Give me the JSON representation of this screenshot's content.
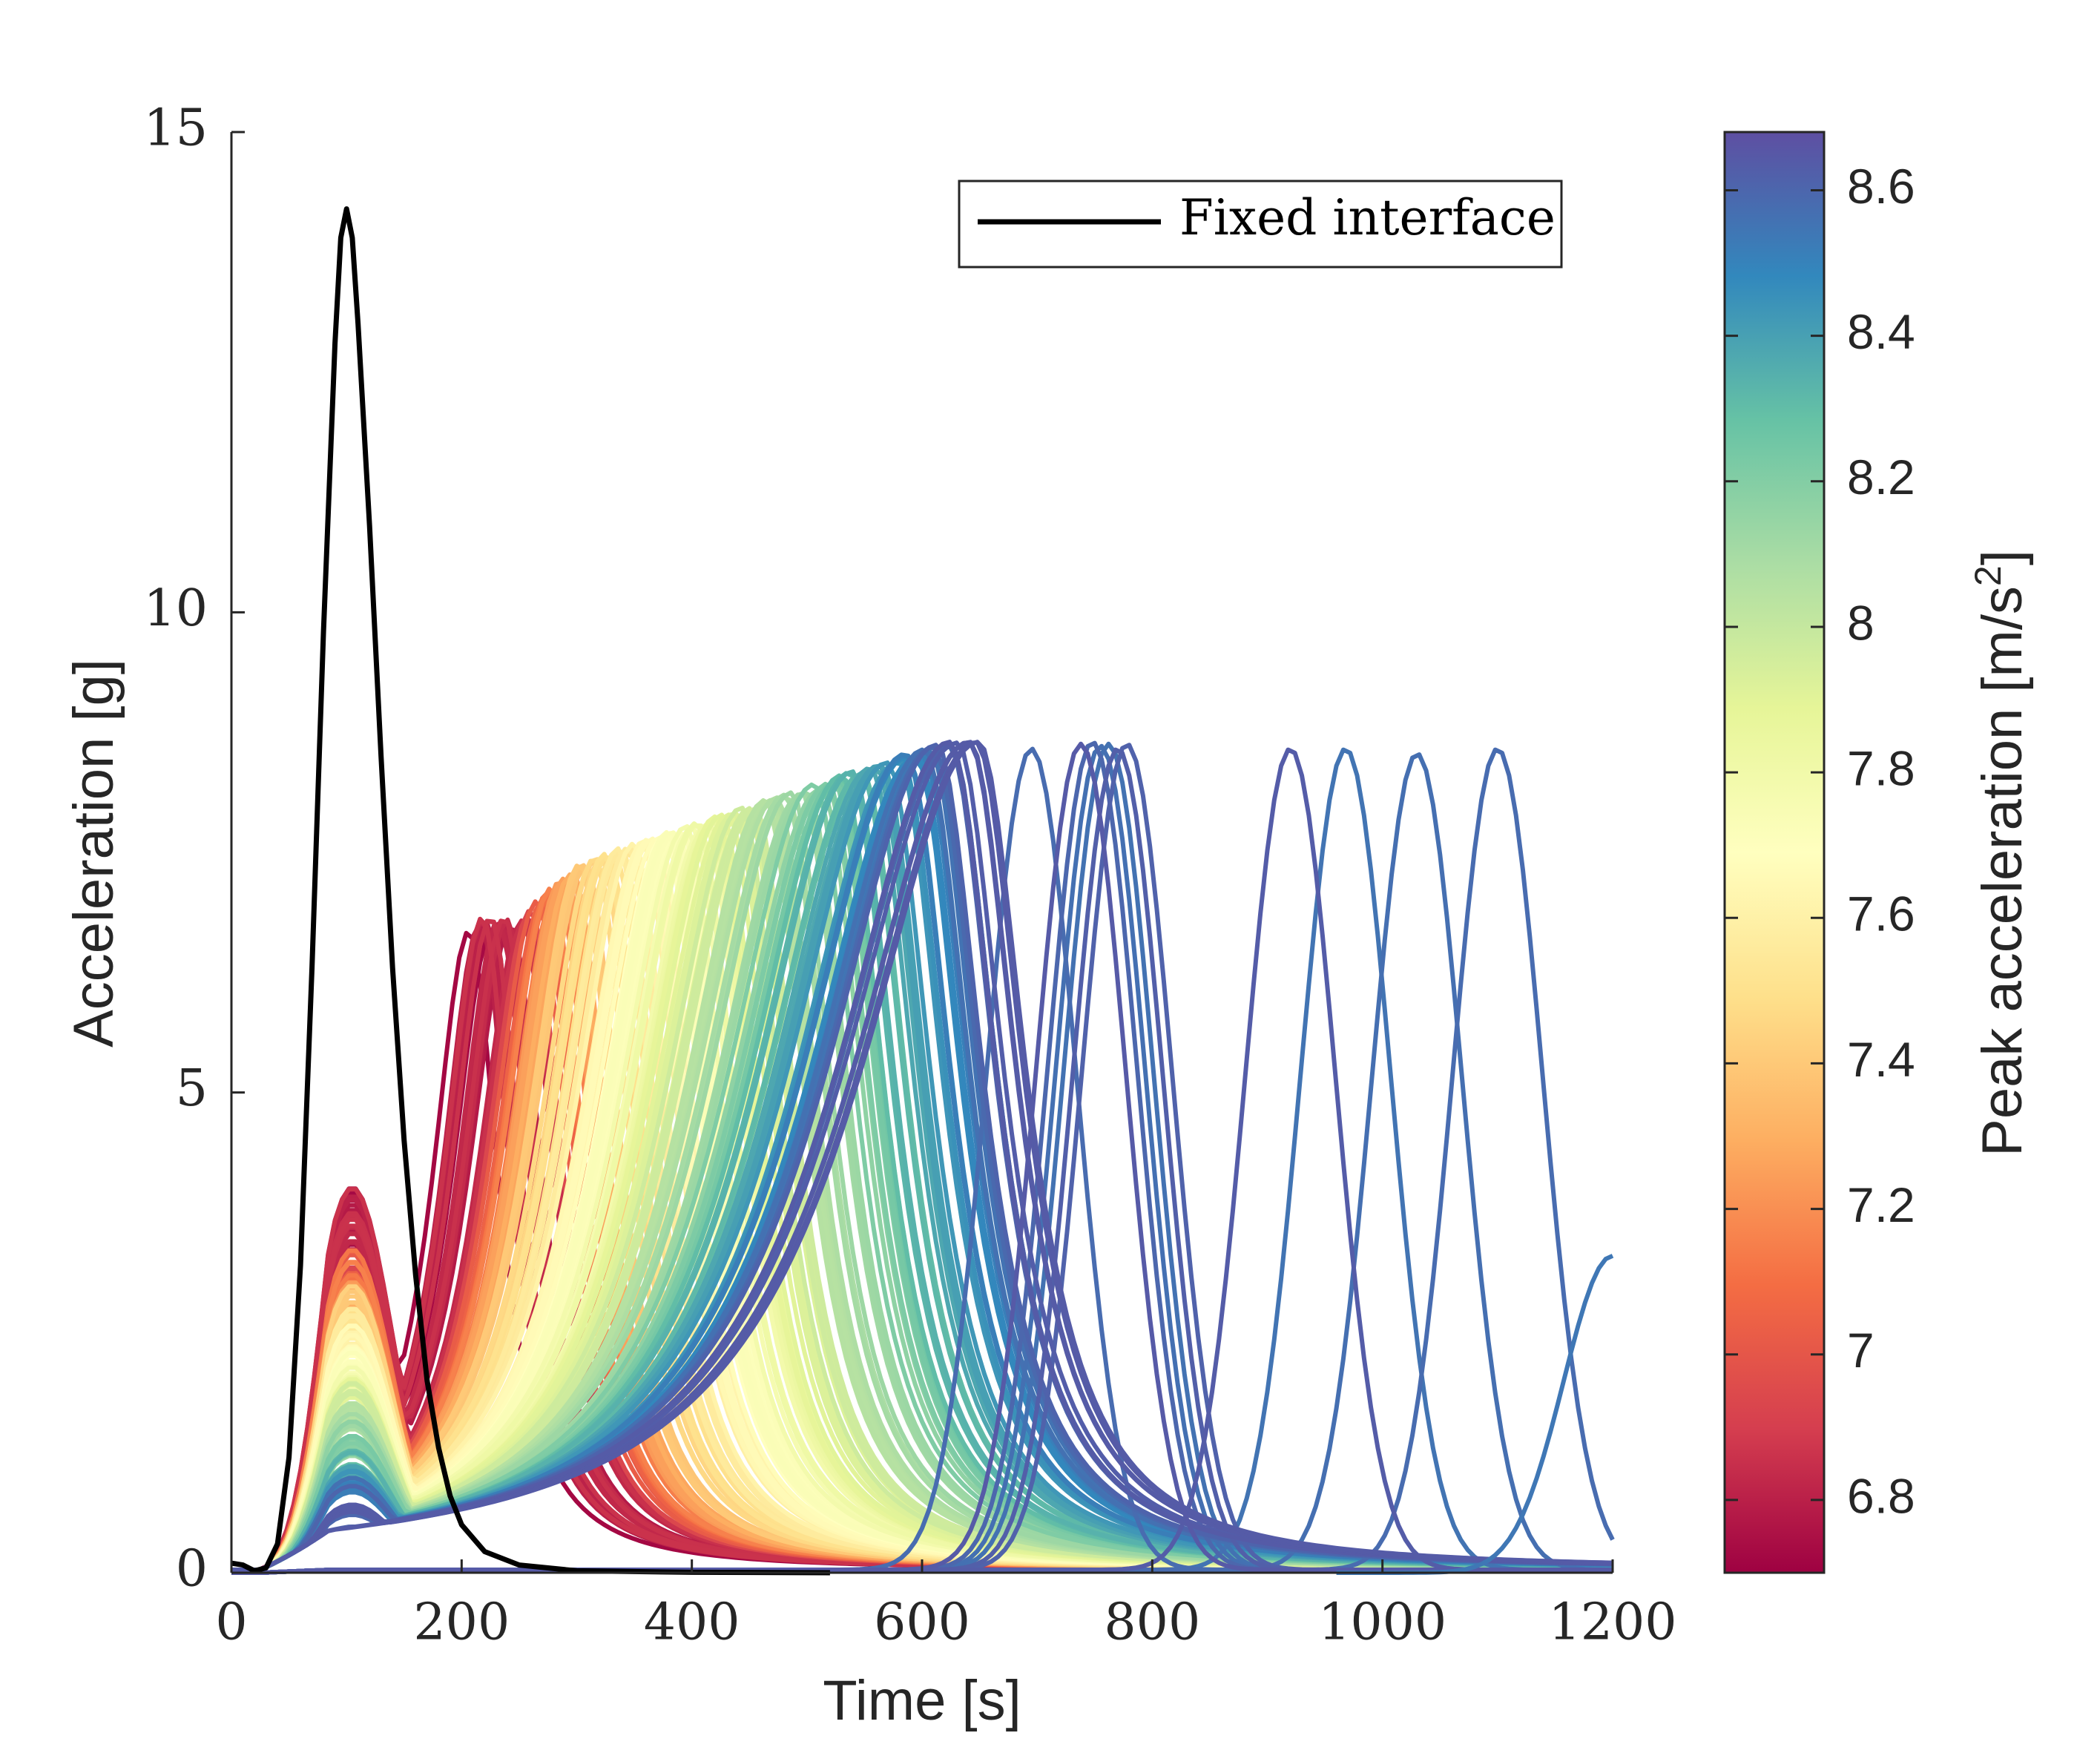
{
  "chart_data": {
    "type": "line",
    "xlabel": "Time [s]",
    "ylabel": "Acceleration [g]",
    "xlim": [
      0,
      1200
    ],
    "ylim": [
      0,
      15
    ],
    "xticks": [
      "0",
      "200",
      "400",
      "600",
      "800",
      "1000",
      "1200"
    ],
    "yticks": [
      "0",
      "5",
      "10",
      "15"
    ],
    "grid": false,
    "legend": {
      "position": "top-right",
      "entries": [
        "Fixed interface"
      ]
    },
    "fixed_interface": {
      "name": "Fixed interface",
      "color": "#000000",
      "points": [
        [
          0,
          0.1
        ],
        [
          10,
          0.08
        ],
        [
          20,
          0.02
        ],
        [
          30,
          0.05
        ],
        [
          40,
          0.3
        ],
        [
          50,
          1.2
        ],
        [
          60,
          3.2
        ],
        [
          70,
          6.3
        ],
        [
          80,
          9.8
        ],
        [
          90,
          12.8
        ],
        [
          95,
          13.9
        ],
        [
          100,
          14.2
        ],
        [
          105,
          13.9
        ],
        [
          110,
          13.0
        ],
        [
          120,
          10.9
        ],
        [
          130,
          8.5
        ],
        [
          140,
          6.3
        ],
        [
          150,
          4.5
        ],
        [
          160,
          3.1
        ],
        [
          170,
          2.0
        ],
        [
          180,
          1.3
        ],
        [
          190,
          0.8
        ],
        [
          200,
          0.5
        ],
        [
          220,
          0.22
        ],
        [
          250,
          0.08
        ],
        [
          300,
          0.02
        ],
        [
          400,
          0.005
        ],
        [
          520,
          0.0
        ]
      ]
    },
    "family": {
      "description_series": "parametric family of acceleration pulses colored by peak acceleration",
      "peak_time_range": [
        215,
        1100
      ],
      "peak_acceleration_g_range": [
        6.8,
        8.65
      ],
      "tail_line_at_end": {
        "x": 1200,
        "y": 3.3
      }
    },
    "colorbar": {
      "label": "Peak acceleration [m/s2]",
      "range": [
        6.7,
        8.68
      ],
      "ticks": [
        "6.8",
        "7",
        "7.2",
        "7.4",
        "7.6",
        "7.8",
        "8",
        "8.2",
        "8.4",
        "8.6"
      ],
      "tick_values": [
        6.8,
        7.0,
        7.2,
        7.4,
        7.6,
        7.8,
        8.0,
        8.2,
        8.4,
        8.6
      ],
      "colormap": [
        "#9e0142",
        "#d53e4f",
        "#f46d43",
        "#fdae61",
        "#fee08b",
        "#ffffbf",
        "#e6f598",
        "#abdda4",
        "#66c2a5",
        "#3288bd",
        "#5e4fa2"
      ]
    }
  }
}
